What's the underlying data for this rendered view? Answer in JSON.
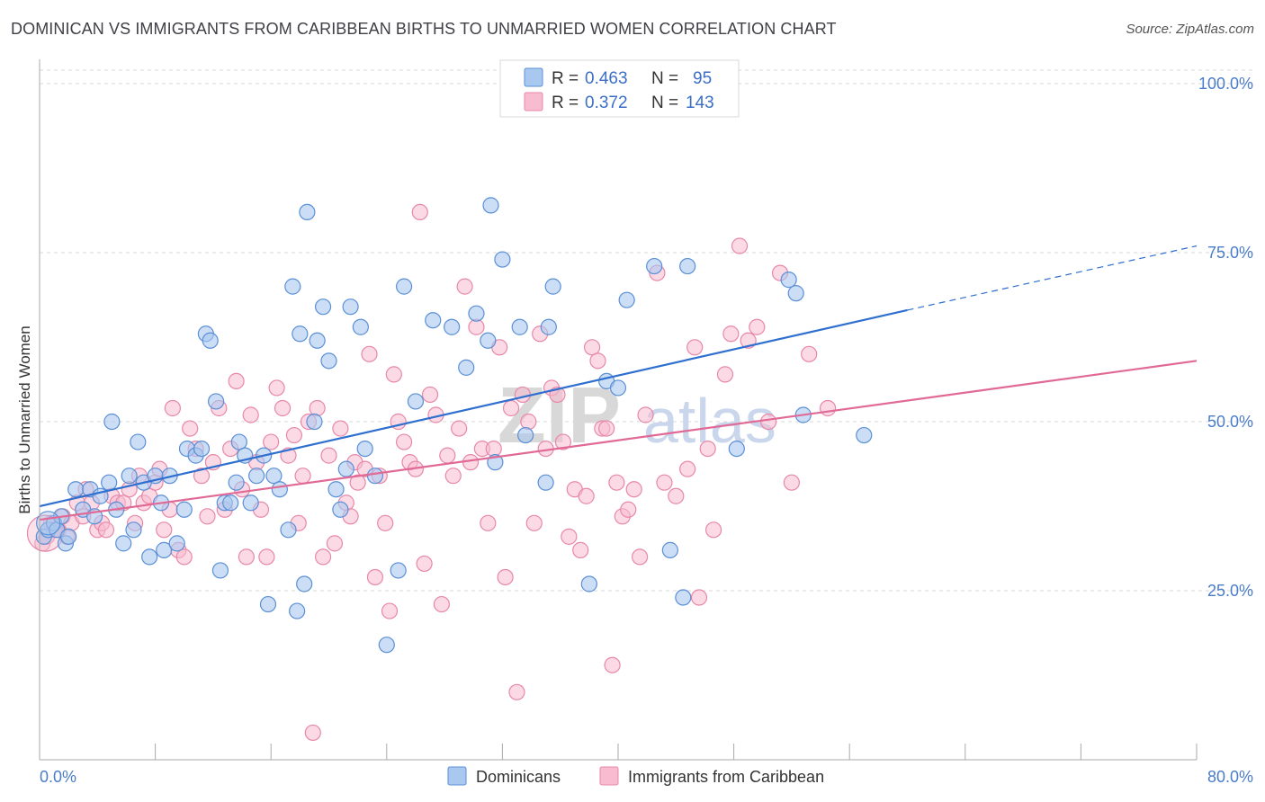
{
  "header": {
    "title": "DOMINICAN VS IMMIGRANTS FROM CARIBBEAN BIRTHS TO UNMARRIED WOMEN CORRELATION CHART",
    "source": "Source: ZipAtlas.com"
  },
  "watermark": {
    "zip": "ZIP",
    "atlas": "atlas"
  },
  "colors": {
    "dominicans_fill": "#a9c8f0",
    "dominicans_stroke": "#5b8fd6",
    "dominicans_line": "#2f6fcf",
    "caribbean_fill": "#f7bccf",
    "caribbean_stroke": "#e888a8",
    "caribbean_line": "#e06a95",
    "grid": "#d8d8d8",
    "tick_label": "#4a7cc9"
  },
  "legend_top": {
    "rows": [
      {
        "r_label": "R =",
        "r_value": "0.463",
        "n_label": "N =",
        "n_value": "95"
      },
      {
        "r_label": "R =",
        "r_value": "0.372",
        "n_label": "N =",
        "n_value": "143"
      }
    ]
  },
  "legend_bottom": {
    "items": [
      {
        "label": "Dominicans"
      },
      {
        "label": "Immigrants from Caribbean"
      }
    ]
  },
  "chart_data": {
    "type": "scatter",
    "title": "DOMINICAN VS IMMIGRANTS FROM CARIBBEAN BIRTHS TO UNMARRIED WOMEN CORRELATION CHART",
    "xlabel": "",
    "ylabel": "Births to Unmarried Women",
    "xlim": [
      0,
      80
    ],
    "ylim": [
      0,
      102
    ],
    "x_tick_labels": [
      "0.0%",
      "80.0%"
    ],
    "y_ticks": [
      25,
      50,
      75,
      100
    ],
    "y_tick_labels": [
      "25.0%",
      "50.0%",
      "75.0%",
      "100.0%"
    ],
    "grid": true,
    "legend_position": "top-center",
    "series": [
      {
        "name": "Dominicans",
        "r": 0.463,
        "n": 95,
        "trend": {
          "x0": 0,
          "y0": 37.5,
          "x1": 60,
          "y1": 66.5,
          "dash_x1": 80,
          "dash_y1": 76
        },
        "points": [
          [
            0.3,
            33
          ],
          [
            0.6,
            34
          ],
          [
            1.0,
            35
          ],
          [
            1.2,
            34
          ],
          [
            1.5,
            36
          ],
          [
            1.8,
            32
          ],
          [
            2.0,
            33
          ],
          [
            2.5,
            40
          ],
          [
            3.0,
            37
          ],
          [
            3.5,
            40
          ],
          [
            3.8,
            36
          ],
          [
            4.2,
            39
          ],
          [
            4.8,
            41
          ],
          [
            5.0,
            50
          ],
          [
            5.3,
            37
          ],
          [
            5.8,
            32
          ],
          [
            6.2,
            42
          ],
          [
            6.5,
            34
          ],
          [
            6.8,
            47
          ],
          [
            7.2,
            41
          ],
          [
            7.6,
            30
          ],
          [
            8.0,
            42
          ],
          [
            8.4,
            38
          ],
          [
            8.6,
            31
          ],
          [
            9.0,
            42
          ],
          [
            9.5,
            32
          ],
          [
            10.0,
            37
          ],
          [
            10.2,
            46
          ],
          [
            10.8,
            45
          ],
          [
            11.2,
            46
          ],
          [
            11.5,
            63
          ],
          [
            11.8,
            62
          ],
          [
            12.2,
            53
          ],
          [
            12.5,
            28
          ],
          [
            12.8,
            38
          ],
          [
            13.2,
            38
          ],
          [
            13.6,
            41
          ],
          [
            13.8,
            47
          ],
          [
            14.2,
            45
          ],
          [
            14.6,
            38
          ],
          [
            15.0,
            42
          ],
          [
            15.5,
            45
          ],
          [
            15.8,
            23
          ],
          [
            16.2,
            42
          ],
          [
            16.6,
            40
          ],
          [
            17.2,
            34
          ],
          [
            17.5,
            70
          ],
          [
            17.8,
            22
          ],
          [
            18.0,
            63
          ],
          [
            18.3,
            26
          ],
          [
            18.5,
            81
          ],
          [
            19.0,
            50
          ],
          [
            19.2,
            62
          ],
          [
            19.6,
            67
          ],
          [
            20.0,
            59
          ],
          [
            20.5,
            40
          ],
          [
            20.8,
            37
          ],
          [
            21.2,
            43
          ],
          [
            21.5,
            67
          ],
          [
            22.2,
            64
          ],
          [
            22.5,
            46
          ],
          [
            23.2,
            42
          ],
          [
            24.0,
            17
          ],
          [
            24.8,
            28
          ],
          [
            25.2,
            70
          ],
          [
            26.0,
            53
          ],
          [
            27.2,
            65
          ],
          [
            28.5,
            64
          ],
          [
            29.5,
            58
          ],
          [
            30.2,
            66
          ],
          [
            31.0,
            62
          ],
          [
            31.5,
            44
          ],
          [
            31.2,
            82
          ],
          [
            32.0,
            74
          ],
          [
            33.2,
            64
          ],
          [
            33.6,
            48
          ],
          [
            35.0,
            41
          ],
          [
            35.2,
            64
          ],
          [
            35.5,
            70
          ],
          [
            38.0,
            26
          ],
          [
            39.2,
            56
          ],
          [
            40.0,
            55
          ],
          [
            40.6,
            68
          ],
          [
            42.5,
            73
          ],
          [
            43.6,
            31
          ],
          [
            44.5,
            24
          ],
          [
            44.8,
            73
          ],
          [
            48.2,
            46
          ],
          [
            51.8,
            71
          ],
          [
            52.3,
            69
          ],
          [
            52.8,
            51
          ],
          [
            57.0,
            48
          ]
        ]
      },
      {
        "name": "Immigrants from Caribbean",
        "r": 0.372,
        "n": 143,
        "trend": {
          "x0": 0,
          "y0": 35.5,
          "x1": 80,
          "y1": 59
        },
        "points": [
          [
            0.2,
            32
          ],
          [
            0.5,
            33
          ],
          [
            0.8,
            35
          ],
          [
            1.0,
            34
          ],
          [
            1.3,
            34
          ],
          [
            1.6,
            36
          ],
          [
            1.9,
            33
          ],
          [
            2.2,
            35
          ],
          [
            2.6,
            38
          ],
          [
            3.0,
            36
          ],
          [
            3.2,
            40
          ],
          [
            3.6,
            38
          ],
          [
            4.0,
            34
          ],
          [
            4.3,
            35
          ],
          [
            4.6,
            34
          ],
          [
            5.0,
            39
          ],
          [
            5.4,
            38
          ],
          [
            5.8,
            38
          ],
          [
            6.2,
            40
          ],
          [
            6.6,
            35
          ],
          [
            6.9,
            42
          ],
          [
            7.2,
            38
          ],
          [
            7.6,
            39
          ],
          [
            8.0,
            41
          ],
          [
            8.3,
            43
          ],
          [
            8.6,
            34
          ],
          [
            9.0,
            37
          ],
          [
            9.2,
            52
          ],
          [
            9.6,
            31
          ],
          [
            10.0,
            30
          ],
          [
            10.4,
            49
          ],
          [
            10.8,
            46
          ],
          [
            11.2,
            42
          ],
          [
            11.6,
            36
          ],
          [
            12.0,
            44
          ],
          [
            12.4,
            52
          ],
          [
            12.8,
            37
          ],
          [
            13.2,
            46
          ],
          [
            13.6,
            56
          ],
          [
            14.0,
            40
          ],
          [
            14.3,
            30
          ],
          [
            14.6,
            51
          ],
          [
            15.0,
            44
          ],
          [
            15.3,
            37
          ],
          [
            15.7,
            30
          ],
          [
            16.0,
            47
          ],
          [
            16.4,
            55
          ],
          [
            16.8,
            52
          ],
          [
            17.2,
            45
          ],
          [
            17.6,
            48
          ],
          [
            17.9,
            35
          ],
          [
            18.2,
            42
          ],
          [
            18.6,
            50
          ],
          [
            18.9,
            4
          ],
          [
            19.2,
            52
          ],
          [
            19.6,
            30
          ],
          [
            20.0,
            45
          ],
          [
            20.4,
            32
          ],
          [
            20.8,
            49
          ],
          [
            21.2,
            38
          ],
          [
            21.5,
            36
          ],
          [
            21.8,
            44
          ],
          [
            22.0,
            41
          ],
          [
            22.5,
            43
          ],
          [
            22.8,
            60
          ],
          [
            23.2,
            27
          ],
          [
            23.5,
            42
          ],
          [
            23.9,
            35
          ],
          [
            24.2,
            22
          ],
          [
            24.5,
            57
          ],
          [
            24.8,
            50
          ],
          [
            25.2,
            47
          ],
          [
            25.6,
            44
          ],
          [
            26.0,
            43
          ],
          [
            26.3,
            81
          ],
          [
            26.6,
            29
          ],
          [
            27.0,
            54
          ],
          [
            27.4,
            51
          ],
          [
            27.8,
            23
          ],
          [
            28.2,
            45
          ],
          [
            28.6,
            42
          ],
          [
            29.0,
            49
          ],
          [
            29.4,
            70
          ],
          [
            29.8,
            44
          ],
          [
            30.2,
            64
          ],
          [
            30.6,
            46
          ],
          [
            31.0,
            35
          ],
          [
            31.4,
            46
          ],
          [
            31.8,
            61
          ],
          [
            32.2,
            27
          ],
          [
            32.6,
            52
          ],
          [
            33.0,
            10
          ],
          [
            33.4,
            54
          ],
          [
            33.8,
            50
          ],
          [
            34.2,
            35
          ],
          [
            34.6,
            63
          ],
          [
            35.0,
            46
          ],
          [
            35.4,
            55
          ],
          [
            35.8,
            54
          ],
          [
            36.2,
            47
          ],
          [
            36.6,
            33
          ],
          [
            37.0,
            40
          ],
          [
            37.4,
            31
          ],
          [
            37.8,
            39
          ],
          [
            38.2,
            61
          ],
          [
            38.6,
            59
          ],
          [
            38.9,
            49
          ],
          [
            39.2,
            49
          ],
          [
            39.6,
            14
          ],
          [
            39.9,
            41
          ],
          [
            40.3,
            36
          ],
          [
            40.7,
            37
          ],
          [
            41.1,
            40
          ],
          [
            41.5,
            30
          ],
          [
            41.9,
            51
          ],
          [
            42.7,
            72
          ],
          [
            43.2,
            41
          ],
          [
            44.0,
            39
          ],
          [
            44.8,
            43
          ],
          [
            45.3,
            61
          ],
          [
            45.6,
            24
          ],
          [
            46.2,
            46
          ],
          [
            46.6,
            34
          ],
          [
            47.4,
            57
          ],
          [
            47.8,
            63
          ],
          [
            48.4,
            76
          ],
          [
            49.0,
            62
          ],
          [
            49.6,
            64
          ],
          [
            50.4,
            50
          ],
          [
            51.2,
            72
          ],
          [
            52.0,
            41
          ],
          [
            53.2,
            60
          ],
          [
            54.5,
            52
          ]
        ]
      }
    ]
  }
}
